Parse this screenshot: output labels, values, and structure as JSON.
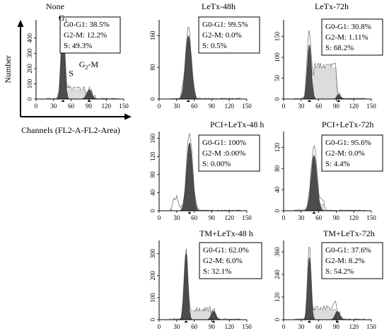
{
  "figure": {
    "y_axis_label": "Number",
    "x_axis_label": "Channels (FL2-A-FL2-Area)"
  },
  "chart_data": [
    {
      "type": "area",
      "title": "None",
      "xlim": [
        0,
        150
      ],
      "xticks": [
        0,
        30,
        60,
        90,
        120,
        150
      ],
      "yticks": [
        0,
        100,
        200,
        300,
        400
      ],
      "ylim": [
        0,
        520
      ],
      "stats": [
        "G0-G1: 38.5%",
        "G2-M: 12.2%",
        "S: 49.3%"
      ],
      "phase_labels": [
        {
          "text": "G",
          "sub": "1",
          "x": 46,
          "y": 515
        },
        {
          "text": "S",
          "sub": "",
          "x": 60,
          "y": 150
        },
        {
          "text": "G",
          "sub": "2",
          "tail": "-M",
          "x": 90,
          "y": 210
        }
      ],
      "peaks": [
        {
          "phase": "G1",
          "mu": 46,
          "sd": 3.2,
          "amp": 475
        },
        {
          "phase": "S",
          "from": 52,
          "to": 86,
          "level": 60
        },
        {
          "phase": "G2-M",
          "mu": 91,
          "sd": 4.5,
          "amp": 60
        }
      ],
      "outline_amp": 500
    },
    {
      "type": "area",
      "title": "LeTx-48h",
      "xlim": [
        0,
        150
      ],
      "xticks": [
        0,
        30,
        60,
        90,
        120,
        150
      ],
      "yticks": [
        0,
        80,
        160
      ],
      "ylim": [
        0,
        200
      ],
      "stats": [
        "G0-G1: 99.5%",
        "G2-M: 0.0%",
        "S: 0.5%"
      ],
      "peaks": [
        {
          "phase": "G1",
          "mu": 50,
          "sd": 5,
          "amp": 160
        }
      ],
      "outline_amp": 178
    },
    {
      "type": "area",
      "title": "LeTx-72h",
      "xlim": [
        0,
        150
      ],
      "xticks": [
        0,
        30,
        60,
        90,
        120,
        150
      ],
      "yticks": [
        0,
        50,
        100,
        150
      ],
      "ylim": [
        0,
        190
      ],
      "stats": [
        "G0-G1: 30.8%",
        "G2-M: 1.11%",
        "S: 68.2%"
      ],
      "peaks": [
        {
          "phase": "G1",
          "mu": 44,
          "sd": 3.5,
          "amp": 130
        },
        {
          "phase": "S",
          "from": 50,
          "to": 92,
          "level": 75
        },
        {
          "phase": "G2-M",
          "mu": 94,
          "sd": 3,
          "amp": 12
        }
      ],
      "outline_amp": 165
    },
    {
      "type": "area",
      "title": "PCI+LeTx-48 h",
      "xlim": [
        0,
        150
      ],
      "xticks": [
        0,
        30,
        60,
        90,
        120,
        150
      ],
      "yticks": [
        0,
        40,
        80,
        120,
        160
      ],
      "ylim": [
        0,
        175
      ],
      "stats": [
        "G0-G1: 100%",
        "G2-M :0.00%",
        "S: 0.00%"
      ],
      "peaks": [
        {
          "phase": "G1",
          "mu": 52,
          "sd": 5,
          "amp": 150
        }
      ],
      "outline_amp": 168,
      "debris": [
        {
          "mu": 28,
          "sd": 4,
          "amp": 32
        }
      ]
    },
    {
      "type": "area",
      "title": "PCI+LeTx-72h",
      "xlim": [
        0,
        150
      ],
      "xticks": [
        0,
        30,
        60,
        90,
        120,
        150
      ],
      "yticks": [
        0,
        40,
        80,
        120
      ],
      "ylim": [
        0,
        150
      ],
      "stats": [
        "G0-G1: 95.6%",
        "G2-M: 0.0%",
        "S: 4.4%"
      ],
      "peaks": [
        {
          "phase": "G1",
          "mu": 52,
          "sd": 5,
          "amp": 105
        },
        {
          "phase": "S",
          "from": 60,
          "to": 72,
          "level": 12
        }
      ],
      "outline_amp": 122
    },
    {
      "type": "area",
      "title": "TM+LeTx-48 h",
      "xlim": [
        0,
        150
      ],
      "xticks": [
        0,
        30,
        60,
        90,
        120,
        150
      ],
      "yticks": [
        0,
        100,
        200,
        300
      ],
      "ylim": [
        0,
        360
      ],
      "stats": [
        "G0-G1: 62.0%",
        "G2-M: 6.0%",
        "S: 32.1%"
      ],
      "peaks": [
        {
          "phase": "G1",
          "mu": 46,
          "sd": 3.2,
          "amp": 300
        },
        {
          "phase": "S",
          "from": 52,
          "to": 90,
          "level": 40
        },
        {
          "phase": "G2-M",
          "mu": 93,
          "sd": 4,
          "amp": 40
        }
      ],
      "outline_amp": 320
    },
    {
      "type": "area",
      "title": "TM+LeTx-72h",
      "xlim": [
        0,
        150
      ],
      "xticks": [
        0,
        30,
        60,
        90,
        120,
        150
      ],
      "yticks": [
        0,
        120,
        240,
        360
      ],
      "ylim": [
        0,
        420
      ],
      "stats": [
        "G0-G1: 37.6%",
        "G2-M: 8.2%",
        "S: 54.2%"
      ],
      "peaks": [
        {
          "phase": "G1",
          "mu": 44,
          "sd": 3,
          "amp": 330
        },
        {
          "phase": "S",
          "from": 50,
          "to": 92,
          "level": 55
        },
        {
          "phase": "G2-M",
          "mu": 92,
          "sd": 4,
          "amp": 45
        }
      ],
      "outline_amp": 380
    }
  ]
}
